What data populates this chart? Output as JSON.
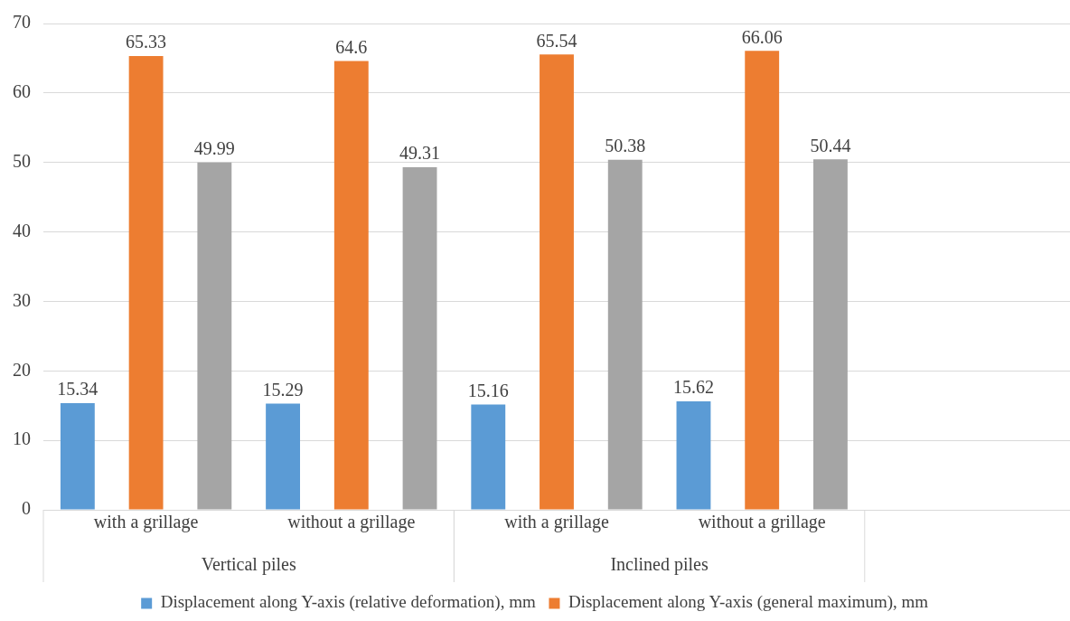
{
  "chart_data": {
    "type": "bar",
    "categories": [
      "with a grillage",
      "without a grillage",
      "with a grillage",
      "without a grillage",
      null
    ],
    "series": [
      {
        "name": "Displacement along Y-axis (relative deformation), mm",
        "color": "#5b9bd5",
        "values": [
          15.34,
          15.29,
          15.16,
          15.62,
          null
        ]
      },
      {
        "name": "Displacement along Y-axis (general maximum), mm",
        "color": "#ed7d31",
        "values": [
          65.33,
          64.6,
          65.54,
          66.06,
          null
        ]
      },
      {
        "color": "#a5a5a5",
        "values": [
          49.99,
          49.31,
          50.38,
          50.44,
          null
        ]
      }
    ],
    "annotations": [
      "Vertical piles",
      "Inclined piles"
    ],
    "ylim": [
      0,
      70
    ],
    "yticks": [
      0,
      10,
      20,
      30,
      40,
      50,
      60,
      70
    ],
    "grid": "y",
    "legend": "bottom",
    "data_labels": true
  }
}
